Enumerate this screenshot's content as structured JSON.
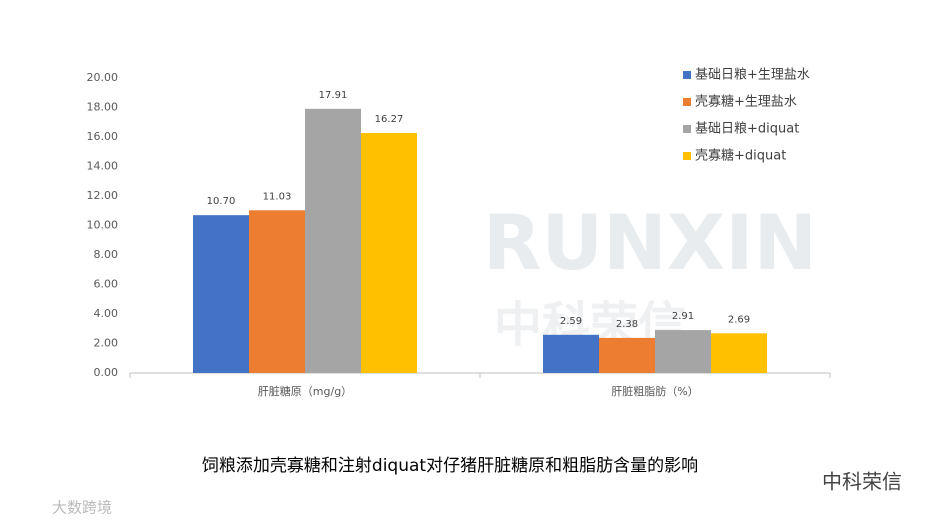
{
  "chart_data": {
    "type": "bar",
    "categories": [
      "肝脏糖原（mg/g）",
      "肝脏粗脂肪（%）"
    ],
    "series": [
      {
        "name": "基础日粮+生理盐水",
        "color": "#4472c4",
        "values": [
          10.7,
          2.59
        ],
        "value_labels": [
          "10.70",
          "2.59"
        ]
      },
      {
        "name": "壳寡糖+生理盐水",
        "color": "#ed7d31",
        "values": [
          11.03,
          2.38
        ],
        "value_labels": [
          "11.03",
          "2.38"
        ]
      },
      {
        "name": "基础日粮+diquat",
        "color": "#a5a5a5",
        "values": [
          17.91,
          2.91
        ],
        "value_labels": [
          "17.91",
          "2.91"
        ]
      },
      {
        "name": "壳寡糖+diquat",
        "color": "#ffc000",
        "values": [
          16.27,
          2.69
        ],
        "value_labels": [
          "16.27",
          "2.69"
        ]
      }
    ],
    "ylim": [
      0,
      20
    ],
    "yticks": [
      {
        "value": 0,
        "label": "0.00"
      },
      {
        "value": 2,
        "label": "2.00"
      },
      {
        "value": 4,
        "label": "4.00"
      },
      {
        "value": 6,
        "label": "6.00"
      },
      {
        "value": 8,
        "label": "8.00"
      },
      {
        "value": 10,
        "label": "10.00"
      },
      {
        "value": 12,
        "label": "12.00"
      },
      {
        "value": 14,
        "label": "14.00"
      },
      {
        "value": 16,
        "label": "16.00"
      },
      {
        "value": 18,
        "label": "18.00"
      },
      {
        "value": 20,
        "label": "20.00"
      }
    ],
    "grid": false,
    "legend": "upper right",
    "caption": "饲粮添加壳寡糖和注射diquat对仔猪肝脏糖原和粗脂肪含量的影响",
    "watermark": [
      "RUNXIN",
      "中科荣信"
    ],
    "footer": [
      "中科荣信",
      "大数跨境"
    ]
  }
}
